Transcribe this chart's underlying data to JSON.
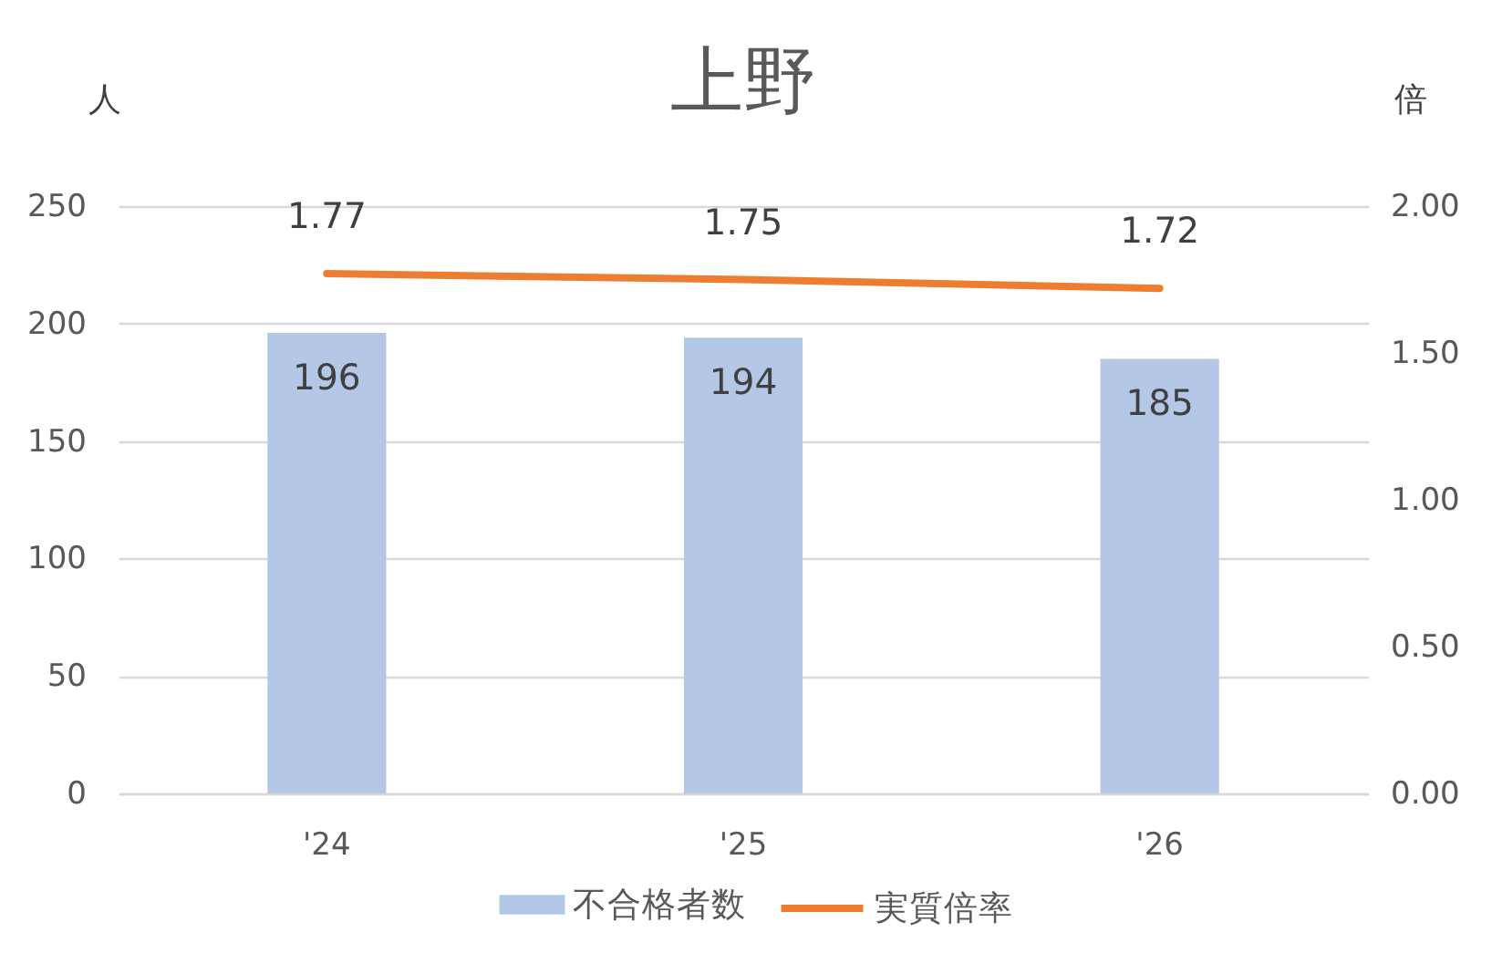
{
  "chart_data": {
    "type": "bar",
    "title": "上野",
    "ylabel": "人",
    "y2label": "倍",
    "categories": [
      "'24",
      "'25",
      "'26"
    ],
    "series": [
      {
        "name": "不合格者数",
        "color": "#b4c7e7",
        "values": [
          196,
          194,
          185
        ]
      },
      {
        "name": "実質倍率",
        "type": "line",
        "axis": "y2",
        "color": "#ed7d31",
        "values": [
          1.77,
          1.75,
          1.72
        ]
      }
    ],
    "ylim": [
      0,
      250
    ],
    "yticks": [
      0,
      50,
      100,
      150,
      200,
      250
    ],
    "y2lim": [
      0,
      2
    ],
    "y2ticks": [
      {
        "value": 0,
        "label": "0.00"
      },
      {
        "value": 0.5,
        "label": "0.50"
      },
      {
        "value": 1,
        "label": "1.00"
      },
      {
        "value": 1.5,
        "label": "1.50"
      },
      {
        "value": 2,
        "label": "2.00"
      }
    ],
    "grid": "y",
    "legend": "bottom",
    "data_labels": true
  }
}
